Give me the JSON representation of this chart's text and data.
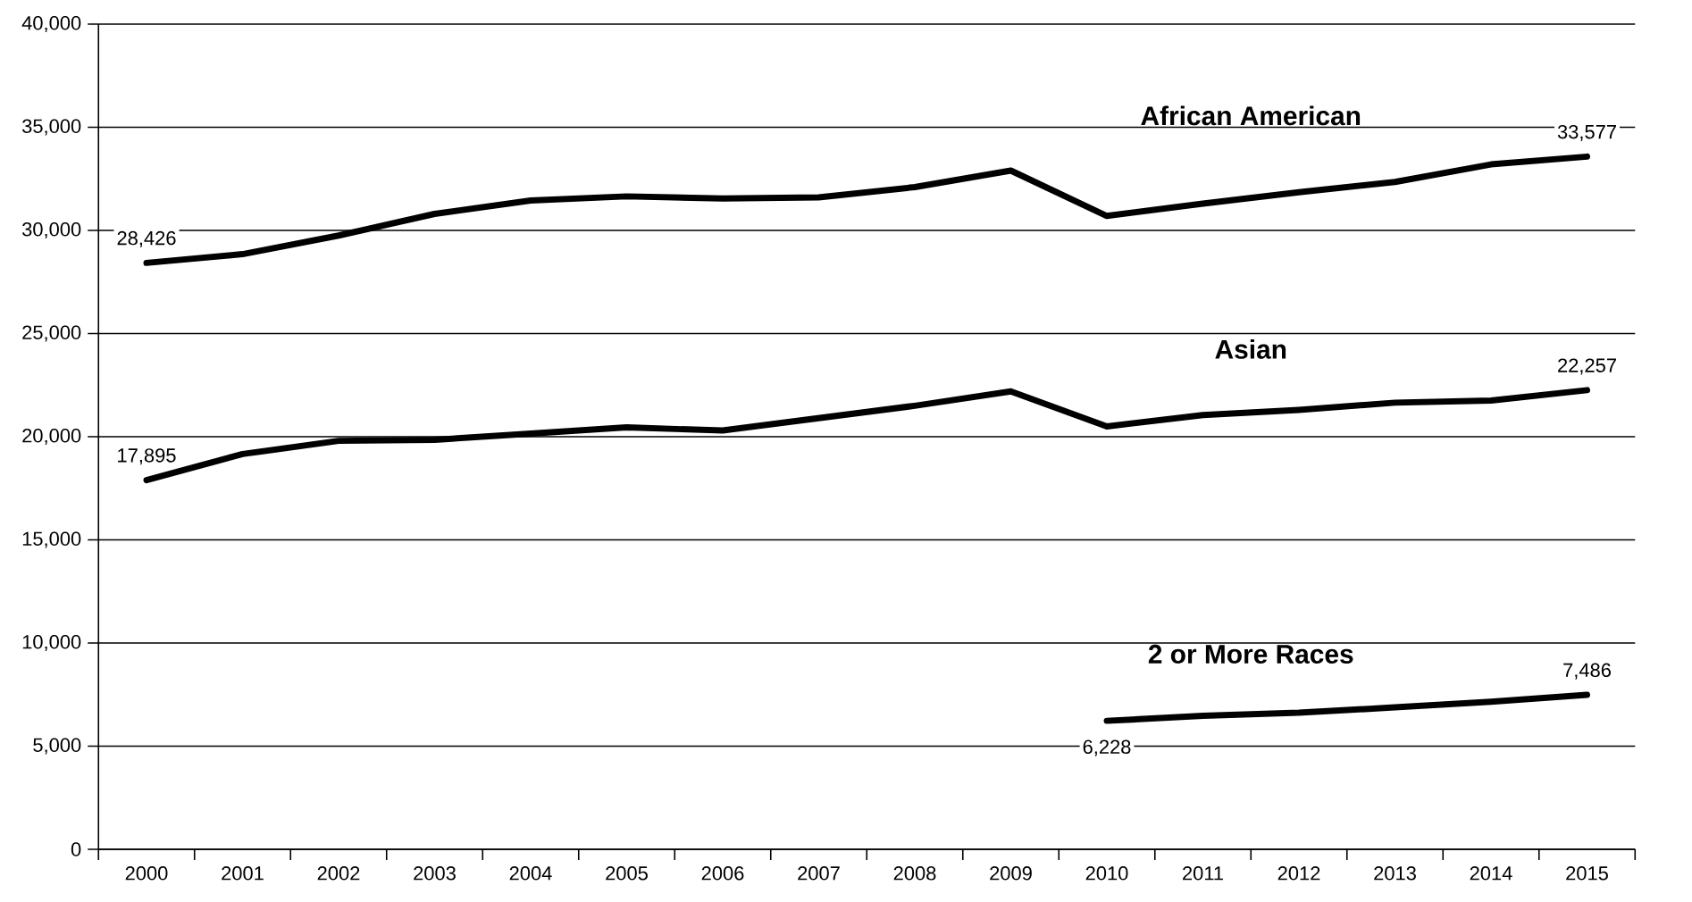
{
  "chart_data": {
    "type": "line",
    "categories": [
      "2000",
      "2001",
      "2002",
      "2003",
      "2004",
      "2005",
      "2006",
      "2007",
      "2008",
      "2009",
      "2010",
      "2011",
      "2012",
      "2013",
      "2014",
      "2015"
    ],
    "series": [
      {
        "name": "African American",
        "color": "#000000",
        "values": [
          28426,
          28850,
          29750,
          30800,
          31450,
          31650,
          31550,
          31600,
          32100,
          32900,
          30700,
          31300,
          31850,
          32350,
          33200,
          33577
        ],
        "value_labels": [
          "28,426",
          null,
          null,
          null,
          null,
          null,
          null,
          null,
          null,
          null,
          null,
          null,
          null,
          null,
          null,
          "33,577"
        ]
      },
      {
        "name": "Asian",
        "color": "#000000",
        "values": [
          17895,
          19160,
          19800,
          19850,
          20150,
          20450,
          20300,
          20900,
          21500,
          22200,
          20500,
          21050,
          21300,
          21650,
          21750,
          22257
        ],
        "value_labels": [
          "17,895",
          null,
          null,
          null,
          null,
          null,
          null,
          null,
          null,
          null,
          null,
          null,
          null,
          null,
          null,
          "22,257"
        ]
      },
      {
        "name": "2 or More Races",
        "color": "#000000",
        "values": [
          null,
          null,
          null,
          null,
          null,
          null,
          null,
          null,
          null,
          null,
          6228,
          6470,
          6620,
          6880,
          7150,
          7486
        ],
        "value_labels": [
          null,
          null,
          null,
          null,
          null,
          null,
          null,
          null,
          null,
          null,
          "6,228",
          null,
          null,
          null,
          null,
          "7,486"
        ]
      }
    ],
    "ylim": [
      0,
      40000
    ],
    "yticks": [
      {
        "value": 0,
        "label": "0"
      },
      {
        "value": 5000,
        "label": "5,000"
      },
      {
        "value": 10000,
        "label": "10,000"
      },
      {
        "value": 15000,
        "label": "15,000"
      },
      {
        "value": 20000,
        "label": "20,000"
      },
      {
        "value": 25000,
        "label": "25,000"
      },
      {
        "value": 30000,
        "label": "30,000"
      },
      {
        "value": 35000,
        "label": "35,000"
      },
      {
        "value": 40000,
        "label": "40,000"
      }
    ],
    "grid": "y",
    "marker": "none",
    "line_style": "solid"
  }
}
